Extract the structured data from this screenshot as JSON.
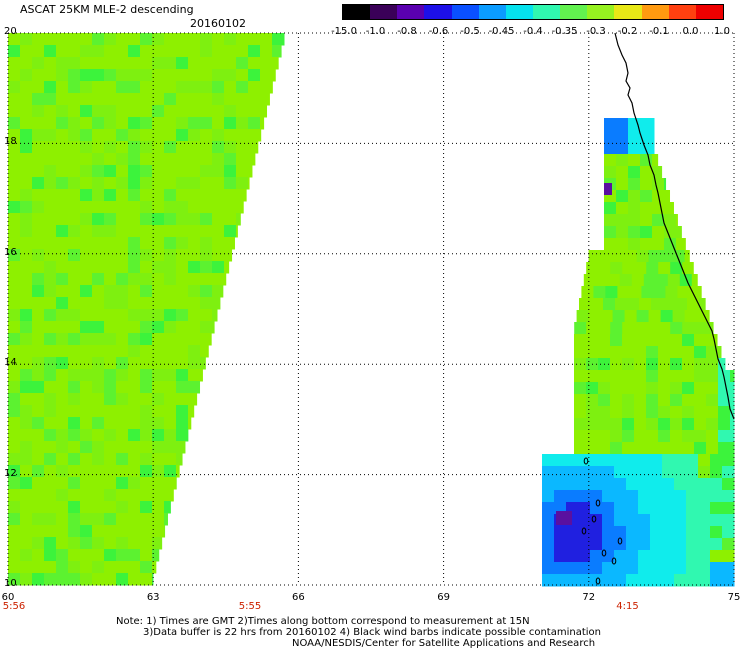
{
  "title": "ASCAT 25KM MLE-2 descending",
  "date": "20160102",
  "colorbar": {
    "labels": [
      "-15.0",
      "-1.0",
      "-0.8",
      "-0.6",
      "-0.5",
      "-0.45",
      "-0.4",
      "-0.35",
      "-0.3",
      "-0.2",
      "-0.1",
      "0.0",
      "1.0"
    ],
    "colors": [
      "#000000",
      "#3a0058",
      "#5a00b0",
      "#1d10e8",
      "#0a50ff",
      "#0b9cff",
      "#05e2ee",
      "#30f8b0",
      "#62f24f",
      "#96f220",
      "#e8e816",
      "#ff9a10",
      "#ff4010",
      "#ee0000"
    ]
  },
  "axes": {
    "x_ticks": [
      "60",
      "63",
      "66",
      "69",
      "72",
      "75"
    ],
    "y_ticks": [
      "20",
      "18",
      "16",
      "14",
      "12",
      "10"
    ],
    "lon_range": [
      60,
      75
    ],
    "lat_range": [
      10,
      20
    ]
  },
  "time_labels": [
    {
      "text": "5:56",
      "lon": 60
    },
    {
      "text": "5:55",
      "lon": 65
    },
    {
      "text": "4:15",
      "lon": 72.8
    }
  ],
  "notes": [
    "Note: 1) Times are GMT 2)Times along bottom correspond to measurement at 15N",
    "3)Data buffer is 22 hrs from 20160102 4) Black wind barbs indicate possible contamination",
    "NOAA/NESDIS/Center for Satellite Applications and Research"
  ],
  "map_colors": {
    "dominant": "#8ef000",
    "green": "#3cf33c",
    "cyan": "#10ecec",
    "blue": "#0a7cff",
    "deep_blue": "#2020e0",
    "purple": "#5a10a0"
  }
}
